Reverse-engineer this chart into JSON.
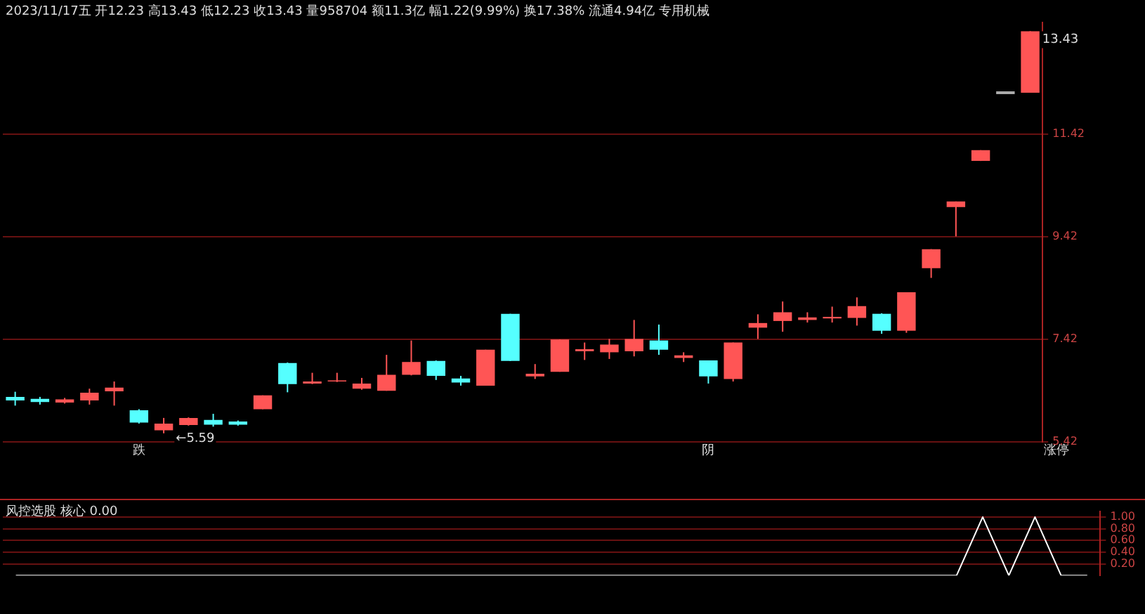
{
  "chart_data": [
    {
      "type": "candlestick",
      "subtitle": "2023/11/17五 开12.23 高13.43 低12.23 收13.43 量958704 额11.3亿 幅1.22(9.99%) 换17.38% 流通4.94亿 专用机械",
      "categories": [
        null,
        null,
        null,
        null,
        null,
        null,
        null,
        null,
        null,
        null,
        null,
        null,
        null,
        null,
        null,
        null,
        null,
        null,
        null,
        null,
        null,
        null,
        null,
        null,
        null,
        null,
        null,
        null,
        null,
        null,
        null,
        null,
        null,
        null,
        null,
        null,
        null,
        null,
        null,
        null,
        null,
        null
      ],
      "ohlc": [
        [
          6.3,
          6.4,
          6.13,
          6.23
        ],
        [
          6.26,
          6.3,
          6.15,
          6.2
        ],
        [
          6.19,
          6.28,
          6.17,
          6.25
        ],
        [
          6.23,
          6.46,
          6.15,
          6.38
        ],
        [
          6.41,
          6.6,
          6.13,
          6.48
        ],
        [
          6.04,
          6.06,
          5.78,
          5.8
        ],
        [
          5.65,
          5.89,
          5.59,
          5.78
        ],
        [
          5.75,
          5.9,
          5.74,
          5.89
        ],
        [
          5.85,
          5.97,
          5.72,
          5.76
        ],
        [
          5.82,
          5.84,
          5.74,
          5.76
        ],
        [
          6.06,
          6.33,
          6.06,
          6.33
        ],
        [
          6.96,
          6.97,
          6.39,
          6.55
        ],
        [
          6.56,
          6.77,
          6.55,
          6.6
        ],
        [
          6.6,
          6.77,
          6.59,
          6.62
        ],
        [
          6.46,
          6.67,
          6.44,
          6.56
        ],
        [
          6.42,
          7.12,
          6.42,
          6.73
        ],
        [
          6.73,
          7.4,
          6.72,
          6.98
        ],
        [
          7.0,
          7.01,
          6.63,
          6.71
        ],
        [
          6.66,
          6.71,
          6.52,
          6.58
        ],
        [
          6.52,
          7.22,
          6.52,
          7.22
        ],
        [
          7.92,
          7.92,
          7.0,
          7.0
        ],
        [
          6.7,
          6.94,
          6.65,
          6.75
        ],
        [
          6.79,
          7.42,
          6.79,
          7.42
        ],
        [
          7.19,
          7.36,
          7.02,
          7.23
        ],
        [
          7.17,
          7.43,
          7.04,
          7.32
        ],
        [
          7.19,
          7.8,
          7.09,
          7.43
        ],
        [
          7.4,
          7.71,
          7.12,
          7.22
        ],
        [
          7.06,
          7.17,
          6.98,
          7.11
        ],
        [
          7.01,
          7.01,
          6.56,
          6.7
        ],
        [
          6.65,
          7.36,
          6.6,
          7.36
        ],
        [
          7.65,
          7.91,
          7.43,
          7.74
        ],
        [
          7.78,
          8.16,
          7.57,
          7.95
        ],
        [
          7.8,
          7.95,
          7.75,
          7.85
        ],
        [
          7.83,
          8.06,
          7.75,
          7.86
        ],
        [
          7.84,
          8.24,
          7.69,
          8.07
        ],
        [
          7.92,
          7.93,
          7.53,
          7.59
        ],
        [
          7.59,
          8.34,
          7.55,
          8.34
        ],
        [
          8.81,
          9.18,
          8.62,
          9.18
        ],
        [
          10.0,
          10.11,
          9.43,
          10.11
        ],
        [
          10.9,
          11.11,
          10.9,
          11.11
        ],
        [
          12.23,
          12.23,
          12.23,
          12.23
        ],
        [
          12.23,
          13.43,
          12.23,
          13.43
        ]
      ],
      "colors": [
        "#55ffff",
        "#55ffff",
        "#ff5555",
        "#ff5555",
        "#ff5555",
        "#55ffff",
        "#ff5555",
        "#ff5555",
        "#55ffff",
        "#55ffff",
        "#ff5555",
        "#55ffff",
        "#ff5555",
        "#ff5555",
        "#ff5555",
        "#ff5555",
        "#ff5555",
        "#55ffff",
        "#55ffff",
        "#ff5555",
        "#55ffff",
        "#ff5555",
        "#ff5555",
        "#ff5555",
        "#ff5555",
        "#ff5555",
        "#55ffff",
        "#ff5555",
        "#55ffff",
        "#ff5555",
        "#ff5555",
        "#ff5555",
        "#ff5555",
        "#ff5555",
        "#ff5555",
        "#55ffff",
        "#ff5555",
        "#ff5555",
        "#ff5555",
        "#ff5555",
        "#aaaaaa",
        "#ff5555"
      ],
      "ylim": [
        5.42,
        13.6
      ],
      "yticks": [
        5.42,
        7.42,
        9.42,
        11.42
      ],
      "grid": "y",
      "annotations": [
        "13.43",
        "←5.59",
        "跌",
        "阴",
        "涨停"
      ]
    },
    {
      "type": "line",
      "title": "风控选股 核心 0.00",
      "categories": [
        null,
        null,
        null,
        null,
        null,
        null,
        null,
        null,
        null,
        null,
        null,
        null,
        null,
        null,
        null,
        null,
        null,
        null,
        null,
        null,
        null,
        null,
        null,
        null,
        null,
        null,
        null,
        null,
        null,
        null,
        null,
        null,
        null,
        null,
        null,
        null,
        null,
        null,
        null,
        null,
        null,
        null
      ],
      "series": [
        {
          "color": "#ffffff",
          "values": [
            0,
            0,
            0,
            0,
            0,
            0,
            0,
            0,
            0,
            0,
            0,
            0,
            0,
            0,
            0,
            0,
            0,
            0,
            0,
            0,
            0,
            0,
            0,
            0,
            0,
            0,
            0,
            0,
            0,
            0,
            0,
            0,
            0,
            0,
            0,
            0,
            0,
            1,
            0,
            1,
            0,
            0
          ]
        }
      ],
      "ylim": [
        0,
        1.1
      ],
      "yticks": [
        {
          "value": 0.2,
          "label": "0.20"
        },
        {
          "value": 0.4,
          "label": "0.40"
        },
        {
          "value": 0.6,
          "label": "0.60"
        },
        {
          "value": 0.8,
          "label": "0.80"
        },
        {
          "value": 1,
          "label": "1.00"
        }
      ],
      "grid": "y"
    }
  ]
}
